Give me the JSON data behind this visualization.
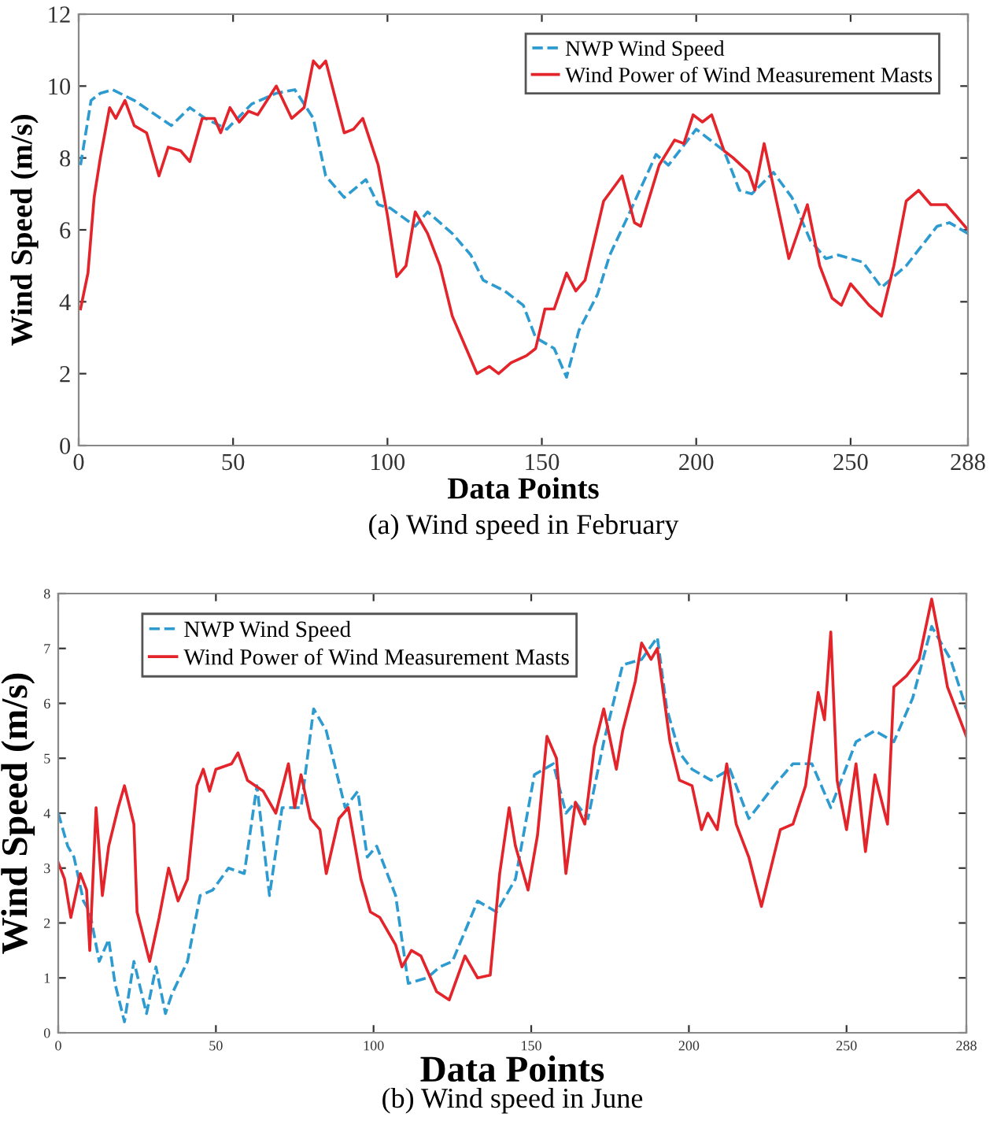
{
  "chart_data": [
    {
      "type": "line",
      "title": "(a) Wind speed in February",
      "xlabel": "Data Points",
      "ylabel": "Wind Speed (m/s)",
      "xlim": [
        0,
        288
      ],
      "xticks": [
        0,
        50,
        100,
        150,
        200,
        250,
        288
      ],
      "ylim": [
        0,
        12
      ],
      "yticks": [
        0,
        2,
        4,
        6,
        8,
        10,
        12
      ],
      "grid": false,
      "legend": "top right",
      "series": [
        {
          "name": "NWP Wind Speed",
          "color": "#2e9bd0",
          "line_style": "dashed",
          "x": [
            0.6,
            4,
            7,
            11,
            18,
            30,
            36,
            41,
            48,
            56,
            64,
            70,
            76,
            80,
            86,
            93,
            97,
            101,
            109,
            113,
            121,
            127,
            131,
            138,
            144,
            148,
            154,
            158,
            162,
            168,
            172,
            178,
            187,
            191,
            200,
            209,
            214,
            218,
            225,
            231,
            237,
            242,
            246,
            254,
            260,
            268,
            278,
            282,
            288
          ],
          "values": [
            7.8,
            9.6,
            9.8,
            9.9,
            9.6,
            8.9,
            9.4,
            9.1,
            8.8,
            9.5,
            9.8,
            9.9,
            9.1,
            7.5,
            6.9,
            7.4,
            6.7,
            6.6,
            6.1,
            6.5,
            5.9,
            5.3,
            4.6,
            4.3,
            3.9,
            3.0,
            2.7,
            1.9,
            3.2,
            4.2,
            5.3,
            6.4,
            8.1,
            7.8,
            8.8,
            8.2,
            7.1,
            7.0,
            7.6,
            6.9,
            5.7,
            5.2,
            5.3,
            5.1,
            4.4,
            5.0,
            6.1,
            6.2,
            5.9
          ]
        },
        {
          "name": "Wind Power of Wind Measurement Masts",
          "color": "#e3242b",
          "line_style": "solid",
          "x": [
            0.6,
            3,
            5,
            7,
            10,
            12,
            15,
            18,
            22,
            26,
            29,
            33,
            36,
            40,
            44,
            46,
            49,
            52,
            55,
            58,
            64,
            69,
            73,
            76,
            78,
            80,
            86,
            89,
            92,
            97,
            100,
            103,
            106,
            109,
            113,
            117,
            121,
            126,
            129,
            133,
            136,
            140,
            145,
            148,
            151,
            154,
            158,
            161,
            164,
            170,
            176,
            180,
            182,
            188,
            193,
            196,
            199,
            202,
            205,
            209,
            212,
            217,
            219,
            222,
            227,
            230,
            236,
            240,
            244,
            247,
            250,
            256,
            260,
            264,
            268,
            272,
            276,
            281,
            288
          ],
          "values": [
            3.8,
            4.8,
            6.9,
            8.0,
            9.4,
            9.1,
            9.6,
            8.9,
            8.7,
            7.5,
            8.3,
            8.2,
            7.9,
            9.1,
            9.1,
            8.7,
            9.4,
            9.0,
            9.3,
            9.2,
            10.0,
            9.1,
            9.4,
            10.7,
            10.5,
            10.7,
            8.7,
            8.8,
            9.1,
            7.8,
            6.4,
            4.7,
            5.0,
            6.5,
            5.9,
            5.0,
            3.6,
            2.6,
            2.0,
            2.2,
            2.0,
            2.3,
            2.5,
            2.7,
            3.8,
            3.8,
            4.8,
            4.3,
            4.6,
            6.8,
            7.5,
            6.2,
            6.1,
            7.8,
            8.5,
            8.4,
            9.2,
            9.0,
            9.2,
            8.2,
            8.0,
            7.6,
            7.1,
            8.4,
            6.4,
            5.2,
            6.7,
            5.0,
            4.1,
            3.9,
            4.5,
            3.9,
            3.6,
            5.0,
            6.8,
            7.1,
            6.7,
            6.7,
            6.0
          ]
        }
      ]
    },
    {
      "type": "line",
      "title": "(b) Wind speed in June",
      "xlabel": "Data Points",
      "ylabel": "Wind Speed (m/s)",
      "xlim": [
        0,
        288
      ],
      "xticks": [
        0,
        50,
        100,
        150,
        200,
        250,
        288
      ],
      "ylim": [
        0,
        8
      ],
      "yticks": [
        0,
        1,
        2,
        3,
        4,
        5,
        6,
        7,
        8
      ],
      "grid": false,
      "legend": "top left",
      "series": [
        {
          "name": "NWP Wind Speed",
          "color": "#2e9bd0",
          "line_style": "dashed",
          "x": [
            0,
            3,
            5,
            8,
            10,
            13,
            16,
            18,
            21,
            24,
            28,
            31,
            34,
            36,
            41,
            45,
            49,
            54,
            59,
            63,
            67,
            71,
            77,
            81,
            85,
            91,
            95,
            98,
            101,
            107,
            111,
            117,
            121,
            125,
            133,
            139,
            145,
            151,
            157,
            161,
            164,
            168,
            173,
            179,
            185,
            190,
            193,
            197,
            201,
            207,
            213,
            219,
            227,
            233,
            239,
            245,
            249,
            253,
            259,
            265,
            271,
            277,
            283,
            288
          ],
          "values": [
            4.0,
            3.4,
            3.2,
            2.4,
            2.2,
            1.3,
            1.7,
            0.9,
            0.2,
            1.3,
            0.35,
            1.2,
            0.35,
            0.7,
            1.3,
            2.5,
            2.6,
            3.0,
            2.9,
            4.5,
            2.5,
            4.1,
            4.1,
            5.9,
            5.5,
            4.1,
            4.4,
            3.2,
            3.4,
            2.5,
            0.9,
            1.0,
            1.2,
            1.3,
            2.4,
            2.2,
            2.8,
            4.7,
            4.9,
            4.0,
            4.2,
            3.9,
            5.3,
            6.7,
            6.8,
            7.2,
            5.9,
            5.1,
            4.8,
            4.6,
            4.8,
            3.9,
            4.5,
            4.9,
            4.9,
            4.1,
            4.7,
            5.3,
            5.5,
            5.3,
            6.1,
            7.4,
            6.8,
            5.9
          ]
        },
        {
          "name": "Wind Power of Wind Measurement Masts",
          "color": "#e3242b",
          "line_style": "solid",
          "x": [
            0,
            2,
            4,
            7,
            9,
            10,
            12,
            14,
            16,
            19,
            21,
            24,
            25,
            29,
            32,
            35,
            38,
            41,
            44,
            46,
            48,
            50,
            55,
            57,
            60,
            65,
            69,
            73,
            75,
            77,
            80,
            83,
            85,
            89,
            92,
            96,
            99,
            102,
            107,
            109,
            112,
            115,
            120,
            124,
            129,
            133,
            137,
            140,
            143,
            145,
            149,
            152,
            155,
            158,
            161,
            164,
            167,
            170,
            173,
            177,
            179,
            183,
            185,
            188,
            190,
            194,
            197,
            201,
            204,
            206,
            209,
            212,
            215,
            219,
            223,
            229,
            233,
            237,
            241,
            243,
            245,
            247,
            250,
            253,
            256,
            259,
            263,
            265,
            269,
            273,
            277,
            279,
            282,
            288
          ],
          "values": [
            3.1,
            2.8,
            2.1,
            2.9,
            2.6,
            1.5,
            4.1,
            2.5,
            3.4,
            4.1,
            4.5,
            3.8,
            2.2,
            1.3,
            2.1,
            3.0,
            2.4,
            2.8,
            4.5,
            4.8,
            4.4,
            4.8,
            4.9,
            5.1,
            4.6,
            4.4,
            4.0,
            4.9,
            4.1,
            4.7,
            3.9,
            3.7,
            2.9,
            3.9,
            4.1,
            2.8,
            2.2,
            2.1,
            1.6,
            1.2,
            1.5,
            1.4,
            0.75,
            0.6,
            1.4,
            1.0,
            1.05,
            2.9,
            4.1,
            3.4,
            2.6,
            3.6,
            5.4,
            5.0,
            2.9,
            4.2,
            3.8,
            5.2,
            5.9,
            4.8,
            5.5,
            6.4,
            7.1,
            6.8,
            7.0,
            5.3,
            4.6,
            4.5,
            3.7,
            4.0,
            3.7,
            4.9,
            3.8,
            3.2,
            2.3,
            3.7,
            3.8,
            4.5,
            6.2,
            5.7,
            7.3,
            4.6,
            3.7,
            4.9,
            3.3,
            4.7,
            3.8,
            6.3,
            6.5,
            6.8,
            7.9,
            7.3,
            6.3,
            5.4
          ]
        }
      ]
    }
  ]
}
